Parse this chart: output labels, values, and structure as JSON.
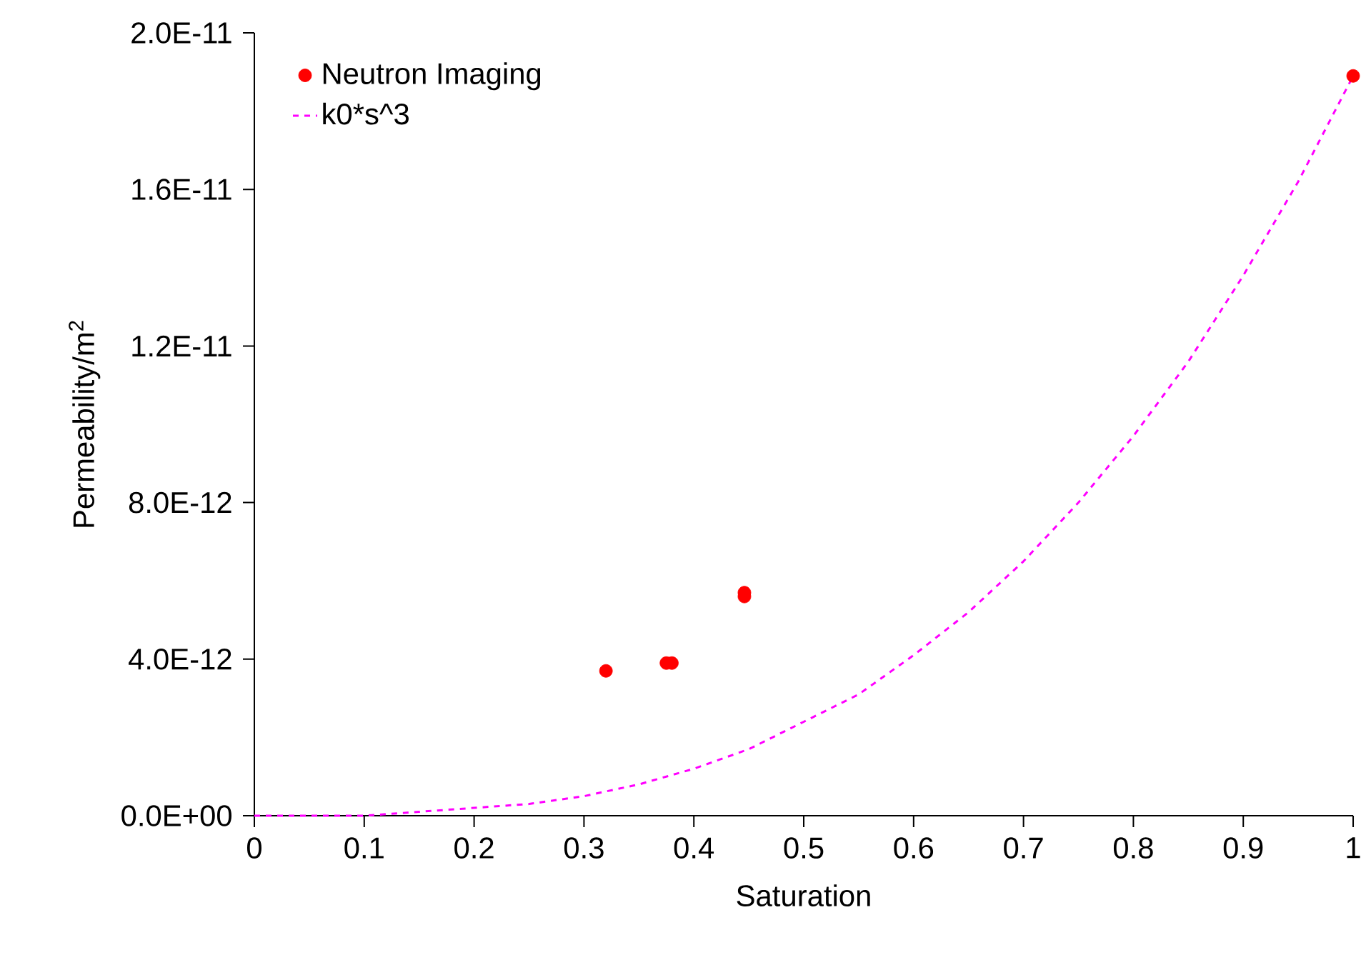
{
  "chart_data": {
    "type": "scatter",
    "xlabel": "Saturation",
    "ylabel": "Permeability/m$^{2}$",
    "xlim": [
      0,
      1
    ],
    "ylim": [
      0,
      2e-11
    ],
    "xticks": [
      0,
      0.1,
      0.2,
      0.3,
      0.4,
      0.5,
      0.6,
      0.7,
      0.8,
      0.9,
      1
    ],
    "yticks": [
      {
        "value": 0,
        "label": "0.0E+00"
      },
      {
        "value": 4e-12,
        "label": "4.0E-12"
      },
      {
        "value": 8e-12,
        "label": "8.0E-12"
      },
      {
        "value": 1.2e-11,
        "label": "1.2E-11"
      },
      {
        "value": 1.6e-11,
        "label": "1.6E-11"
      },
      {
        "value": 2e-11,
        "label": "2.0E-11"
      }
    ],
    "grid": false,
    "legend": "top left",
    "series": [
      {
        "name": "Neutron Imaging",
        "color": "#ff0000",
        "marker": "circle",
        "x": [
          0.32,
          0.375,
          0.38,
          0.446,
          0.446,
          1
        ],
        "values": [
          3.7e-12,
          3.9e-12,
          3.9e-12,
          5.7e-12,
          5.6e-12,
          1.89e-11
        ]
      },
      {
        "type": "line",
        "name": "k0*s^3",
        "color": "#ff00ff",
        "line_style": "dashed",
        "marker": "none",
        "x": [
          0,
          0.05,
          0.1,
          0.15,
          0.2,
          0.25,
          0.3,
          0.35,
          0.4,
          0.45,
          0.5,
          0.55,
          0.6,
          0.65,
          0.7,
          0.75,
          0.8,
          0.85,
          0.9,
          0.95,
          1
        ],
        "values": [
          0,
          0,
          0,
          1e-13,
          2e-13,
          3e-13,
          5e-13,
          8e-13,
          1.2e-12,
          1.7e-12,
          2.4e-12,
          3.1e-12,
          4.1e-12,
          5.2e-12,
          6.5e-12,
          8e-12,
          9.7e-12,
          1.16e-11,
          1.38e-11,
          1.62e-11,
          1.89e-11
        ]
      }
    ]
  }
}
